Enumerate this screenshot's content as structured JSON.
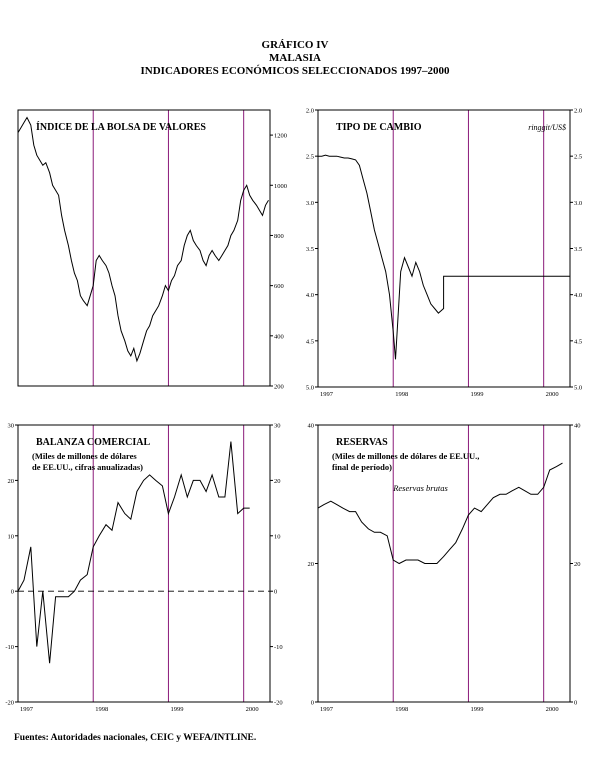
{
  "header": {
    "line1": "GRÁFICO IV",
    "line2": "MALASIA",
    "line3": "INDICADORES ECONÓMICOS SELECCIONADOS 1997–2000"
  },
  "source": "Fuentes: Autoridades nacionales, CEIC y WEFA/INTLINE.",
  "colors": {
    "divider": "#8b1a7a",
    "axis": "#000000",
    "line": "#000000"
  },
  "chart_data": [
    {
      "id": "stock",
      "type": "line",
      "title": "ÍNDICE DE LA BOLSA DE VALORES",
      "subtitle": [],
      "unit": "",
      "xlim": [
        1997.0,
        2000.35
      ],
      "ylim": [
        200,
        1300
      ],
      "ticks_left": [],
      "ticks_right": [
        200,
        400,
        600,
        800,
        1000,
        1200
      ],
      "x_ticks": [],
      "dividers": [
        1998,
        1999,
        2000
      ],
      "series": [
        {
          "x": [
            1997.0,
            1997.04,
            1997.08,
            1997.12,
            1997.17,
            1997.21,
            1997.25,
            1997.29,
            1997.33,
            1997.37,
            1997.42,
            1997.46,
            1997.5,
            1997.54,
            1997.58,
            1997.62,
            1997.67,
            1997.71,
            1997.75,
            1997.79,
            1997.83,
            1997.87,
            1997.92,
            1997.96,
            1998.0,
            1998.04,
            1998.08,
            1998.12,
            1998.17,
            1998.21,
            1998.25,
            1998.29,
            1998.33,
            1998.37,
            1998.42,
            1998.46,
            1998.5,
            1998.54,
            1998.58,
            1998.62,
            1998.67,
            1998.71,
            1998.75,
            1998.79,
            1998.83,
            1998.87,
            1998.92,
            1998.96,
            1999.0,
            1999.04,
            1999.08,
            1999.12,
            1999.17,
            1999.21,
            1999.25,
            1999.29,
            1999.33,
            1999.37,
            1999.42,
            1999.46,
            1999.5,
            1999.54,
            1999.58,
            1999.62,
            1999.67,
            1999.71,
            1999.75,
            1999.79,
            1999.83,
            1999.87,
            1999.92,
            1999.96,
            2000.0,
            2000.04,
            2000.08,
            2000.12,
            2000.17,
            2000.21,
            2000.25,
            2000.29,
            2000.33
          ],
          "y": [
            1210,
            1230,
            1250,
            1270,
            1240,
            1160,
            1120,
            1100,
            1080,
            1090,
            1050,
            1000,
            980,
            960,
            880,
            820,
            760,
            700,
            650,
            620,
            560,
            540,
            520,
            560,
            600,
            700,
            720,
            700,
            680,
            650,
            600,
            560,
            480,
            420,
            380,
            340,
            320,
            350,
            300,
            330,
            380,
            420,
            440,
            480,
            500,
            520,
            560,
            600,
            580,
            620,
            640,
            680,
            700,
            760,
            800,
            820,
            780,
            760,
            740,
            700,
            680,
            720,
            740,
            720,
            700,
            720,
            740,
            760,
            800,
            820,
            860,
            940,
            980,
            1000,
            960,
            940,
            920,
            900,
            880,
            920,
            940
          ]
        }
      ]
    },
    {
      "id": "fx",
      "type": "line",
      "title": "TIPO DE CAMBIO",
      "subtitle": [],
      "unit": "ringgit/US$",
      "xlim": [
        1997.0,
        2000.35
      ],
      "ylim_inverted": [
        2.0,
        5.0
      ],
      "ticks_left": [
        2.0,
        2.5,
        3.0,
        3.5,
        4.0,
        4.5,
        5.0
      ],
      "ticks_right": [
        2.0,
        2.5,
        3.0,
        3.5,
        4.0,
        4.5,
        5.0
      ],
      "x_ticks": [
        "1997",
        "1998",
        "1999",
        "2000"
      ],
      "dividers": [
        1998,
        1999,
        2000
      ],
      "series": [
        {
          "x": [
            1997.0,
            1997.05,
            1997.1,
            1997.15,
            1997.2,
            1997.25,
            1997.3,
            1997.35,
            1997.4,
            1997.45,
            1997.5,
            1997.55,
            1997.6,
            1997.65,
            1997.7,
            1997.75,
            1997.8,
            1997.85,
            1997.9,
            1997.95,
            1998.0,
            1998.03,
            1998.06,
            1998.1,
            1998.15,
            1998.2,
            1998.25,
            1998.3,
            1998.35,
            1998.4,
            1998.45,
            1998.5,
            1998.55,
            1998.6,
            1998.67,
            1998.67,
            2000.35
          ],
          "y": [
            2.5,
            2.5,
            2.49,
            2.5,
            2.5,
            2.5,
            2.51,
            2.52,
            2.52,
            2.53,
            2.54,
            2.6,
            2.75,
            2.9,
            3.1,
            3.3,
            3.45,
            3.6,
            3.75,
            4.0,
            4.4,
            4.7,
            4.3,
            3.75,
            3.6,
            3.7,
            3.8,
            3.65,
            3.75,
            3.9,
            4.0,
            4.1,
            4.15,
            4.2,
            4.15,
            3.8,
            3.8
          ]
        }
      ]
    },
    {
      "id": "trade",
      "type": "line",
      "title": "BALANZA COMERCIAL",
      "subtitle": [
        "(Miles de millones de dólares",
        "de EE.UU., cifras anualizadas)"
      ],
      "unit": "",
      "xlim": [
        1997.0,
        2000.35
      ],
      "ylim": [
        -20,
        30
      ],
      "ticks_left": [
        -20,
        -10,
        0,
        10,
        20,
        30
      ],
      "ticks_right": [
        -20,
        -10,
        0,
        10,
        20,
        30
      ],
      "x_ticks": [
        "1997",
        "1998",
        "1999",
        "2000"
      ],
      "dividers": [
        1998,
        1999,
        2000
      ],
      "zero_line": 0,
      "series": [
        {
          "x": [
            1997.0,
            1997.08,
            1997.17,
            1997.25,
            1997.33,
            1997.42,
            1997.5,
            1997.58,
            1997.67,
            1997.75,
            1997.83,
            1997.92,
            1998.0,
            1998.08,
            1998.17,
            1998.25,
            1998.33,
            1998.42,
            1998.5,
            1998.58,
            1998.67,
            1998.75,
            1998.83,
            1998.92,
            1999.0,
            1999.08,
            1999.17,
            1999.25,
            1999.33,
            1999.42,
            1999.5,
            1999.58,
            1999.67,
            1999.75,
            1999.83,
            1999.92,
            2000.0,
            2000.08
          ],
          "y": [
            0,
            2,
            8,
            -10,
            0,
            -13,
            -1,
            -1,
            -1,
            0,
            2,
            3,
            8,
            10,
            12,
            11,
            16,
            14,
            13,
            18,
            20,
            21,
            20,
            19,
            14,
            17,
            21,
            17,
            20,
            20,
            18,
            21,
            17,
            17,
            27,
            14,
            15,
            15
          ]
        }
      ]
    },
    {
      "id": "reserves",
      "type": "line",
      "title": "RESERVAS",
      "subtitle": [
        "(Miles de millones de dólares de EE.UU.,",
        "final de período)"
      ],
      "unit": "",
      "xlim": [
        1997.0,
        2000.35
      ],
      "ylim": [
        0,
        40
      ],
      "ticks_left": [
        0,
        20,
        40
      ],
      "ticks_right": [
        0,
        20,
        40
      ],
      "x_ticks": [
        "1997",
        "1998",
        "1999",
        "2000"
      ],
      "dividers": [
        1998,
        1999,
        2000
      ],
      "annotation": "Reservas brutas",
      "series": [
        {
          "x": [
            1997.0,
            1997.08,
            1997.17,
            1997.25,
            1997.33,
            1997.42,
            1997.5,
            1997.58,
            1997.67,
            1997.75,
            1997.83,
            1997.92,
            1998.0,
            1998.08,
            1998.17,
            1998.25,
            1998.33,
            1998.42,
            1998.5,
            1998.58,
            1998.67,
            1998.75,
            1998.83,
            1998.92,
            1999.0,
            1999.08,
            1999.17,
            1999.25,
            1999.33,
            1999.42,
            1999.5,
            1999.58,
            1999.67,
            1999.75,
            1999.83,
            1999.92,
            2000.0,
            2000.08,
            2000.17,
            2000.25
          ],
          "y": [
            28,
            28.5,
            29,
            28.5,
            28,
            27.5,
            27.5,
            26,
            25,
            24.5,
            24.5,
            24,
            20.5,
            20,
            20.5,
            20.5,
            20.5,
            20,
            20,
            20,
            21,
            22,
            23,
            25,
            27,
            28,
            27.5,
            28.5,
            29.5,
            30,
            30,
            30.5,
            31,
            30.5,
            30,
            30,
            31,
            33.5,
            34,
            34.5
          ]
        }
      ]
    }
  ]
}
